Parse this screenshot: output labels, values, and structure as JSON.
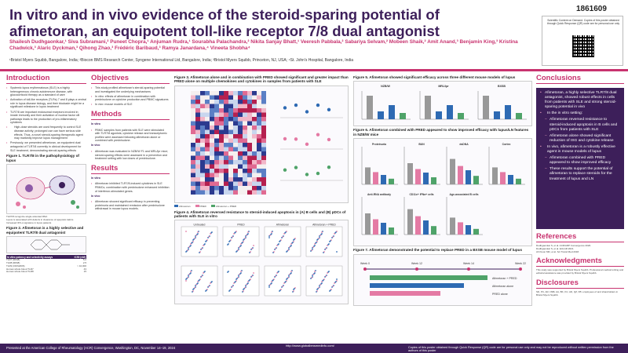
{
  "poster": {
    "number": "1861609",
    "title": "In vitro and in vivo evidence of the steroid-sparing potential of afimetoran, an equipotent toll-like receptor 7/8 dual antagonist",
    "authors": "Shailesh Dudhgaonkar,¹ Siva Subramani,² Puneet Chopra,¹ Anjuman Rudra,¹ Sourabha Palachandra,² Nikita Sanjay Bhatt,¹ Veeresh Pabbala,² Sabariya Selvam,² Mobeen Shaik,² Amit Anand,³ Benjamin King,³ Kristina Chadwick,³ Alaric Dyckman,³ Qihong Zhao,³ Frédéric Baribaud,³ Ramya Janardana,⁴ Vineeta Shobha⁴",
    "affiliations": "¹Bristol Myers Squibb, Bangalore, India; ²Biocon BMS Research Center, Syngene International Ltd, Bangalore, India; ³Bristol Myers Squibb, Princeton, NJ, USA; ⁴St. John's Hospital, Bangalore, India",
    "qr_text": "Scientific Content on Demand. Copies of this poster obtained through Quick Response (QR) code are for personal use only"
  },
  "sections": {
    "introduction": {
      "title": "Introduction",
      "bullets": [
        "Systemic lupus erythematosus (SLE) is a highly heterogeneous chronic autoimmune disease, with glucocorticoid therapy as a standard of care",
        "Activation of toll-like receptors (TLRs) 7 and 8 plays a central role in lupus disease biology, and their blockade might be a significant milestone in lupus treatment",
        "TLR7/8 are important endosomal receptors involved in innate immunity and their activation of nuclear factor κB pathways leads to the production of pro-inflammatory cytokines",
        "High-dose steroids are used frequently to control SLE disease activity; prolonged use can have serious side effects. Thus, a novel steroid-sparing therapeutic agent may markedly improve lupus management",
        "Previously, we presented afimetoran, an equipotent dual antagonist of TLR7/8 currently in clinical development for SLE treatment, demonstrating steroid-sparing effects"
      ],
      "fig1_caption": "Figure 1. TLR7/8 in the pathophysiology of lupus",
      "fig1_notes": [
        "TLR7/8 recognize single-stranded RNA",
        "Lupus is associated with defects in clearance of apoptotic debris",
        "Increased IFN-α signature in lupus patients"
      ],
      "fig2_caption": "Figure 2. Afimetoran is a highly selective and equipotent TLR7/8 dual antagonist",
      "fig2_table_header": [
        "In vitro potency and selectivity assays",
        "IC50 (nM)"
      ],
      "fig2_table_rows": [
        [
          "TLR7 (R848)",
          "5.0"
        ],
        [
          "TLR8 (R848)",
          "2.5"
        ],
        [
          "TLR9 (ODN2006)",
          "> 10,000"
        ],
        [
          "Human whole blood TLR7",
          "43"
        ],
        [
          "Human whole blood TLR8",
          "15"
        ]
      ]
    },
    "objectives": {
      "title": "Objectives",
      "bullets": [
        "This study profiled afimetoran's steroid-sparing potential and investigated the underlying mechanisms",
        "In vitro: effects of afimetoran in combination with prednisolone on cytokine production and PBMC signatures",
        "In vivo: mouse models of SLE"
      ]
    },
    "methods": {
      "title": "Methods",
      "invitro_label": "In vitro",
      "invitro_text": "PBMC samples from patients with SLE were stimulated with TLR7/8 agonists; cytokine release and transcriptomic profiles were assessed following afimetoran alone or combined with prednisolone.",
      "invivo_label": "In vivo",
      "invivo_text": "Afimetoran was evaluated in NZB/W F1 and MRL/lpr mice; steroid-sparing effects were assessed in a prevention and treatment setting with low doses of prednisolone."
    },
    "results": {
      "title": "Results",
      "invitro_label": "In vitro",
      "invitro_text": "Afimetoran inhibited TLR7/8-induced cytokines in SLE PBMCs; combination with prednisolone enhanced inhibition of interferon-stimulated genes.",
      "invivo_label": "In vivo",
      "invivo_text": "Afimetoran showed significant efficacy in preventing proteinuria and maintained remission after prednisolone withdrawal in mouse lupus models."
    },
    "conclusions": {
      "title": "Conclusions",
      "items": [
        {
          "level": 1,
          "text": "Afimetoran, a highly selective TLR7/8 dual antagonist, showed robust effects in cells from patients with SLE and strong steroid-sparing potential in vivo"
        },
        {
          "level": 2,
          "text": "In the in vitro setting:"
        },
        {
          "level": 3,
          "text": "Afimetoran reversed resistance to steroid-induced apoptosis in B cells and pDCs from patients with SLE"
        },
        {
          "level": 3,
          "text": "Afimetoran alone showed significant reduction of ISG and cytokine release"
        },
        {
          "level": 2,
          "text": "In vivo, afimetoran is a robustly effective agent in mouse models of lupus"
        },
        {
          "level": 3,
          "text": "Afimetoran combined with PRED appeared to show improved efficacy"
        },
        {
          "level": 3,
          "text": "These results support the potential of afimetoran to replace steroids for the treatment of lupus and LN"
        }
      ]
    },
    "references": {
      "title": "References",
      "items": [
        "Dudhgaonkar S, et al. ACR/ARP Convergence 2020.",
        "Dudhgaonkar S, et al. EULAR 2021.",
        "Ah Kioon MD, et al. Sci Transl Med 2018."
      ]
    },
    "acknowledgments": {
      "title": "Acknowledgments",
      "text": "This study was supported by Bristol Myers Squibb. Professional medical writing and editorial assistance was provided by Bristol Myers Squibb."
    },
    "disclosures": {
      "title": "Disclosures",
      "text": "SD, PC, AR, NSB, AA, BK, KC, AD, QZ, FB: employees of and shareholders in Bristol Myers Squibb."
    }
  },
  "figures": {
    "fig3": {
      "caption": "Figure 3. Afimetoran alone and in combination with PRED showed significant and greater impact than PRED alone on multiple chemokines and cytokines in samples from patients with SLE",
      "legend": [
        "Afimetoran",
        "PRED",
        "Afimetoran + PRED"
      ]
    },
    "fig4": {
      "caption": "Figure 4. Afimetoran reversed resistance to steroid-induced apoptosis in (A) B cells and (B) pDCs of patients with SLE in vitro",
      "panels": [
        "Untreated",
        "PRED",
        "Afimetoran",
        "Afimetoran + PRED"
      ]
    },
    "fig5": {
      "caption": "Figure 5. Afimetoran showed significant efficacy across three different mouse models of lupus",
      "panels": [
        "NZB/W",
        "MRL/lpr",
        "BXSB"
      ],
      "ylabel": "Proteinuria"
    },
    "fig6": {
      "caption": "Figure 6. Afimetoran combined with PRED appeared to show improved efficacy with lupus/LN features in NZB/W mice",
      "panels": [
        "Proteinuria",
        "BUN",
        "dsDNA",
        "Cortex",
        "Anti-RNA antibody",
        "CD11c+ IFNa+ cells",
        "Age-associated B cells"
      ]
    },
    "fig7": {
      "caption": "Figure 7. Afimetoran demonstrated the potential to replace PRED in a BXSB mouse model of lupus",
      "timeline": [
        "Week 0",
        "Week 12",
        "Week 14",
        "Week 22"
      ],
      "arms": [
        "Afimetoran + PRED",
        "Afimetoran alone",
        "PRED alone"
      ]
    }
  },
  "footer": {
    "left": "Presented at the American College of Rheumatology (ACR) Convergence, Washington, DC, November 14–19, 2024",
    "middle": "http://www.globalbmsmedinfo.com/",
    "right": "Copies of this poster obtained through Quick Response (QR) code are for personal use only and may not be reproduced without written permission from the authors of this poster"
  },
  "colors": {
    "brand_purple": "#3d1f5a",
    "brand_magenta": "#c8336f",
    "series_blue": "#2e6ab3",
    "series_pink": "#e47aa4",
    "series_green": "#4fa369"
  }
}
